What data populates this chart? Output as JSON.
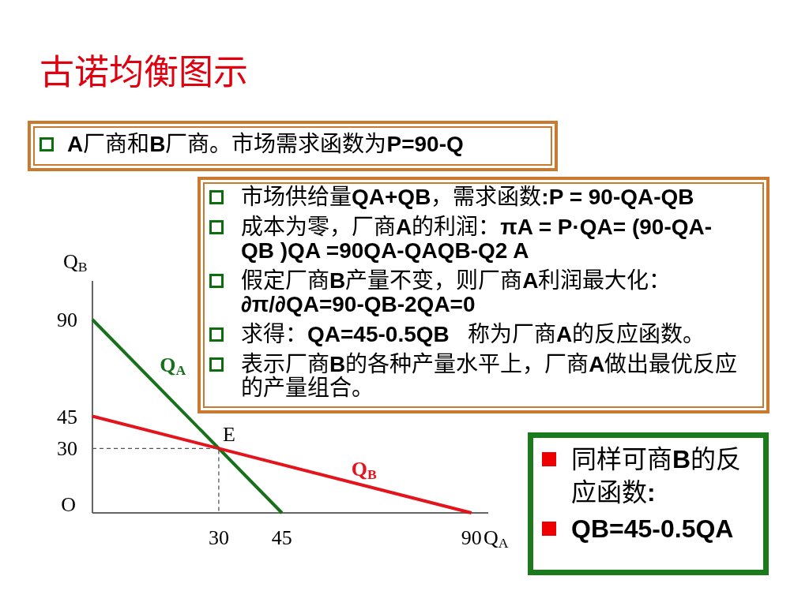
{
  "chart_data": {
    "type": "line",
    "title": "古诺均衡图示",
    "xlabel": "Q$_{A}$",
    "ylabel": "Q$_{B}$",
    "xlim": [
      0,
      94
    ],
    "ylim": [
      0,
      108
    ],
    "xticks": [
      30,
      45,
      90
    ],
    "yticks": [
      30,
      45,
      90
    ],
    "series": [
      {
        "name": "Q$_{A}$",
        "color": "#17701a",
        "x": [
          0,
          45
        ],
        "values": [
          90,
          0
        ]
      },
      {
        "name": "Q$_{B}$",
        "color": "#e3141b",
        "x": [
          0,
          90
        ],
        "values": [
          45,
          0
        ]
      },
      {
        "color": "#555555",
        "line_style": "dashed",
        "x": [
          0,
          30,
          30
        ],
        "values": [
          30,
          30,
          0
        ]
      }
    ],
    "annotations": [
      {
        "text": "E",
        "x": 30,
        "y": 30
      },
      "O",
      "A厂商和B厂商。市场需求函数为P=90-Q",
      "市场供给量QA+QB，需求函数:P = 90-QA-QB",
      "成本为零，厂商A的利润：πA = P·QA= (90-QA-QB )QA =90QA-QAQB-Q2 A",
      "假定厂商B产量不变，则厂商A利润最大化：∂π/∂QA=90-QB-2QA=0",
      "求得：QA=45-0.5QB   称为厂商A的反应函数。",
      "表示厂商B的各种产量水平上，厂商A做出最优反应的产量组合。",
      "同样可商B的反应函数:",
      "QB=45-0.5QA"
    ]
  }
}
